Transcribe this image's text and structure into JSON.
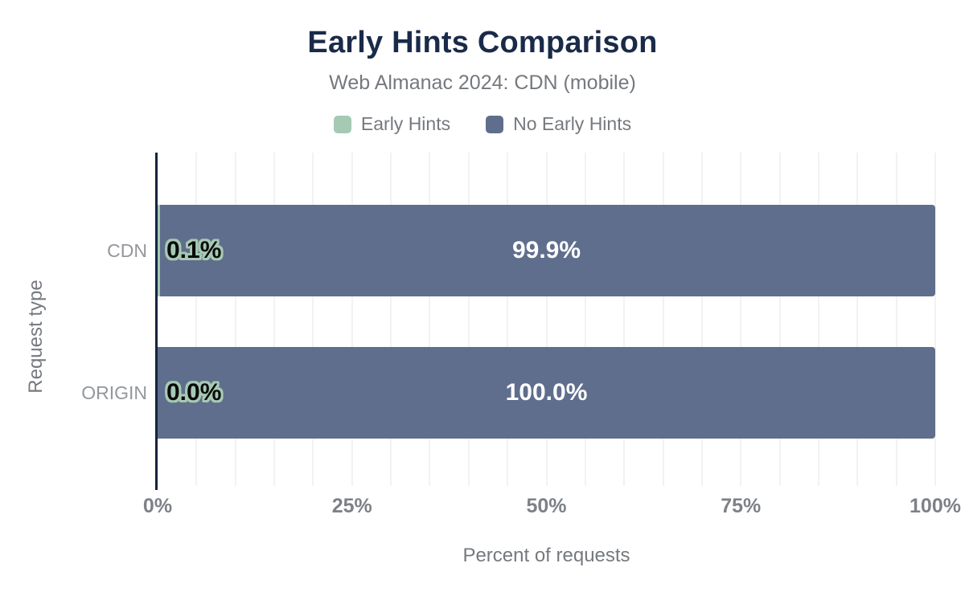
{
  "chart_data": {
    "type": "bar",
    "orientation": "horizontal",
    "stacked": true,
    "title": "Early Hints Comparison",
    "subtitle": "Web Almanac 2024: CDN (mobile)",
    "xlabel": "Percent of requests",
    "ylabel": "Request type",
    "categories": [
      "CDN",
      "ORIGIN"
    ],
    "series": [
      {
        "name": "Early Hints",
        "color": "#a6c9b4",
        "values": [
          0.1,
          0.0
        ]
      },
      {
        "name": "No Early Hints",
        "color": "#5f6e8c",
        "values": [
          99.9,
          100.0
        ]
      }
    ],
    "bar_labels": {
      "early_hints": [
        "0.1%",
        "0.0%"
      ],
      "no_early_hints": [
        "99.9%",
        "100.0%"
      ]
    },
    "xlim": [
      0,
      100
    ],
    "x_ticks": [
      "0%",
      "25%",
      "50%",
      "75%",
      "100%"
    ],
    "grid": {
      "vertical_lines_every_percent": 5,
      "color": "#f2f2f4"
    },
    "legend_position": "top"
  },
  "legend": {
    "items": [
      {
        "label": "Early Hints",
        "color": "#a6c9b4"
      },
      {
        "label": "No Early Hints",
        "color": "#5f6e8c"
      }
    ]
  },
  "colors": {
    "background": "#ffffff",
    "title": "#1a2b49",
    "subtitle": "#75797e",
    "axis_line": "#16233f",
    "tick_label": "#7d8187",
    "category_label": "#94979b",
    "bar_blue": "#5f6e8c",
    "bar_green": "#a6c9b4",
    "value_label_dark": "#0a0a0a",
    "value_label_light": "#ffffff"
  }
}
